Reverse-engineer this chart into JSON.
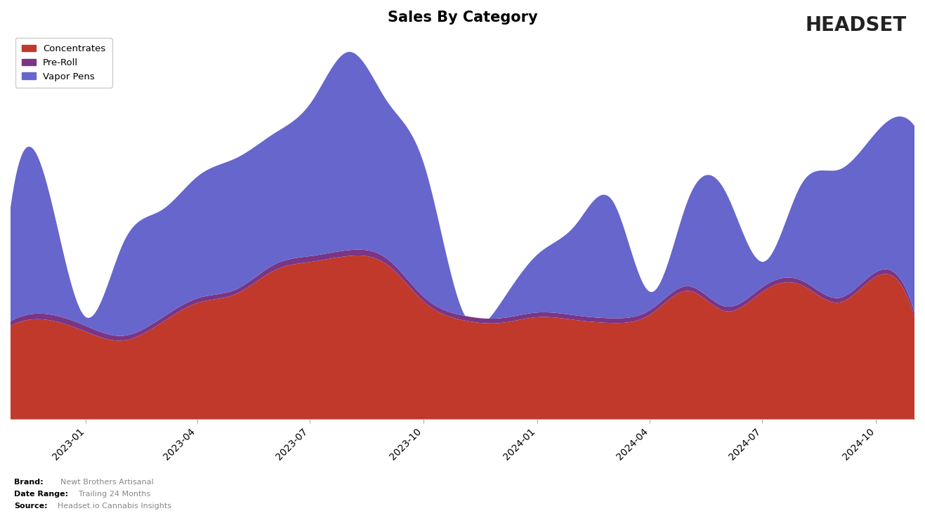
{
  "title": "Sales By Category",
  "title_fontsize": 15,
  "background_color": "#ffffff",
  "legend_entries": [
    "Concentrates",
    "Pre-Roll",
    "Vapor Pens"
  ],
  "colors": {
    "Concentrates": "#C0392B",
    "Pre-Roll": "#7B3585",
    "Vapor_Pens": "#6666CC"
  },
  "footer_brand": "Newt Brothers Artisanal",
  "footer_date_range": "Trailing 24 Months",
  "footer_source": "Headset.io Cannabis Insights",
  "x_tick_labels": [
    "2023-01",
    "2023-04",
    "2023-07",
    "2023-10",
    "2024-01",
    "2024-04",
    "2024-07",
    "2024-10"
  ]
}
